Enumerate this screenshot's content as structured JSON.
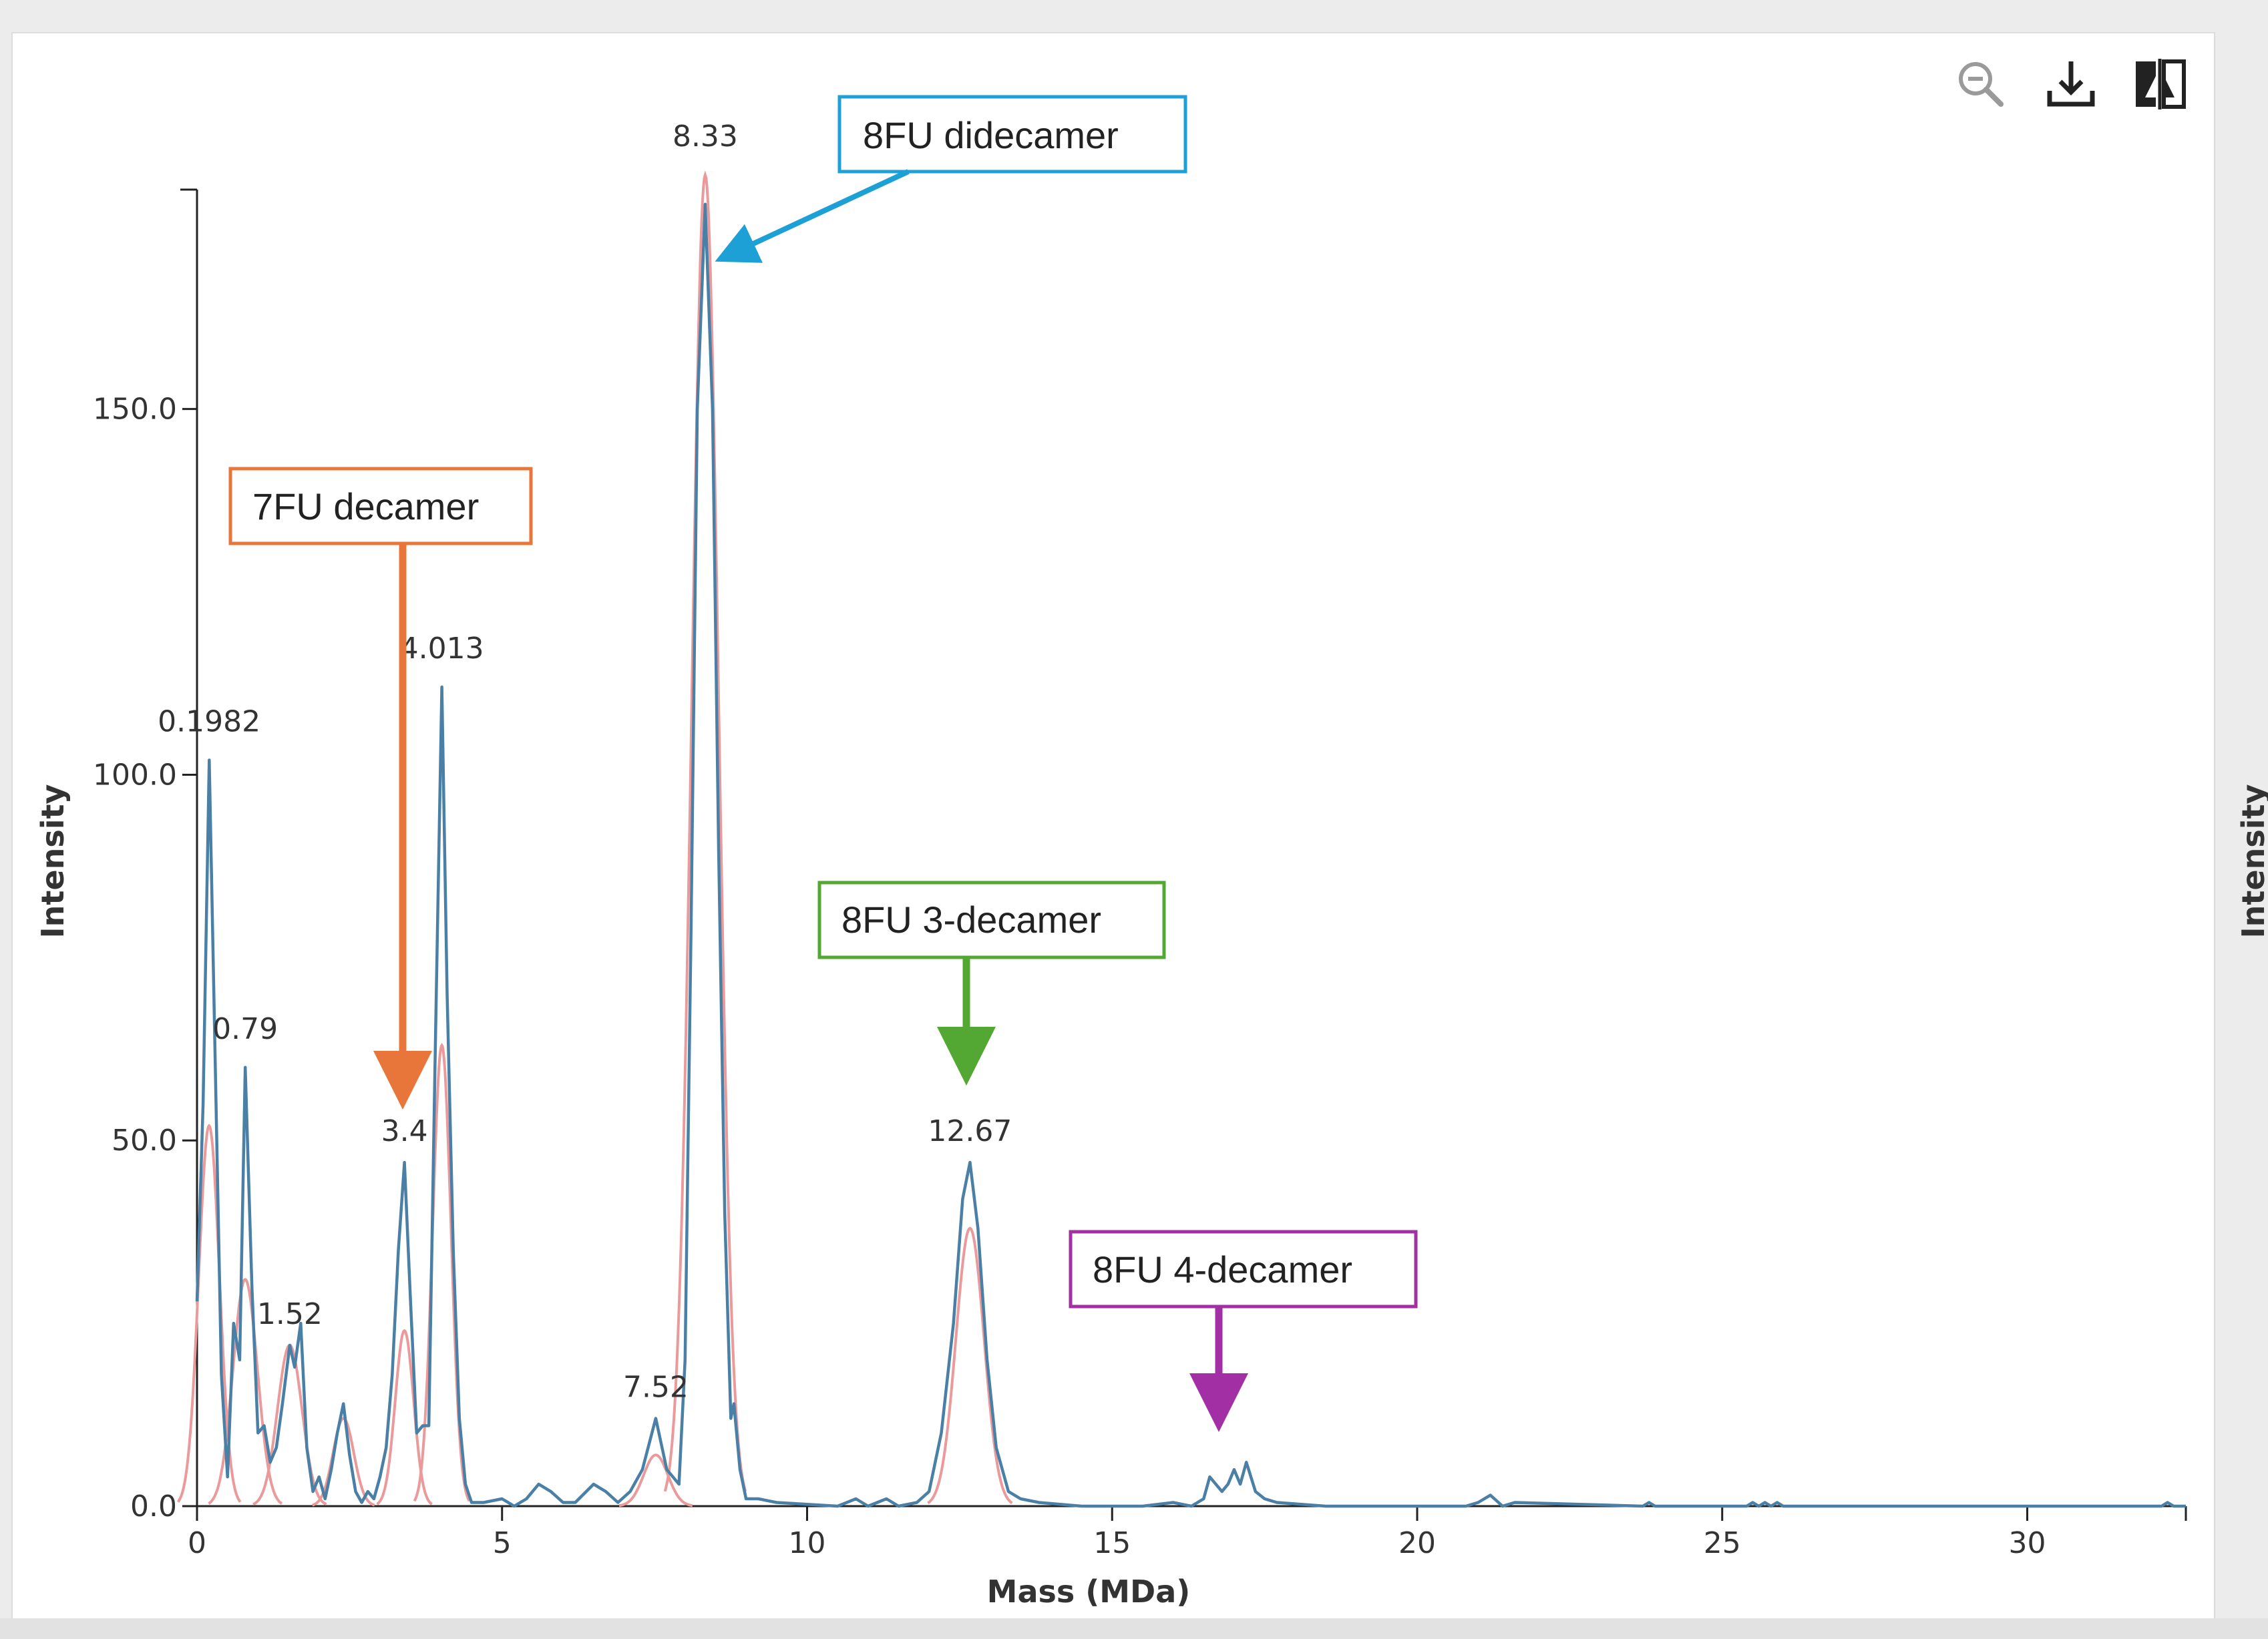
{
  "toolbar": {
    "icons": [
      "zoom-out-icon",
      "download-icon",
      "compare-icon"
    ]
  },
  "right_panel_axis_label": "Intensity",
  "chart_data": {
    "type": "line",
    "xlabel": "Mass (MDa)",
    "ylabel": "Intensity",
    "xlim": [
      0,
      32.6
    ],
    "ylim": [
      0,
      180
    ],
    "xticks": [
      0,
      5,
      10,
      15,
      20,
      25,
      30
    ],
    "yticks": [
      0.0,
      50.0,
      100.0,
      150.0
    ],
    "ytick_labels": [
      "0.0",
      "50.0",
      "100.0",
      "150.0"
    ],
    "grid": false,
    "series": [
      {
        "color": "#4a7fa6",
        "points": [
          [
            0,
            28
          ],
          [
            0.1,
            55
          ],
          [
            0.2,
            102
          ],
          [
            0.3,
            60
          ],
          [
            0.4,
            18
          ],
          [
            0.5,
            4
          ],
          [
            0.6,
            25
          ],
          [
            0.7,
            20
          ],
          [
            0.79,
            60
          ],
          [
            0.9,
            30
          ],
          [
            1.0,
            10
          ],
          [
            1.1,
            11
          ],
          [
            1.2,
            6
          ],
          [
            1.3,
            8
          ],
          [
            1.4,
            14
          ],
          [
            1.52,
            22
          ],
          [
            1.6,
            19
          ],
          [
            1.7,
            25
          ],
          [
            1.8,
            8
          ],
          [
            1.9,
            2
          ],
          [
            2.0,
            4
          ],
          [
            2.1,
            1
          ],
          [
            2.2,
            5
          ],
          [
            2.3,
            10
          ],
          [
            2.4,
            14
          ],
          [
            2.5,
            7
          ],
          [
            2.6,
            2
          ],
          [
            2.7,
            0.5
          ],
          [
            2.8,
            2
          ],
          [
            2.9,
            1
          ],
          [
            3.0,
            4
          ],
          [
            3.1,
            8
          ],
          [
            3.2,
            18
          ],
          [
            3.3,
            35
          ],
          [
            3.4,
            47
          ],
          [
            3.5,
            28
          ],
          [
            3.6,
            10
          ],
          [
            3.7,
            11
          ],
          [
            3.8,
            11
          ],
          [
            3.9,
            60
          ],
          [
            4.013,
            112
          ],
          [
            4.1,
            70
          ],
          [
            4.2,
            35
          ],
          [
            4.3,
            12
          ],
          [
            4.4,
            3
          ],
          [
            4.5,
            0.5
          ],
          [
            4.7,
            0.5
          ],
          [
            5.0,
            1
          ],
          [
            5.2,
            0
          ],
          [
            5.4,
            1
          ],
          [
            5.6,
            3
          ],
          [
            5.8,
            2
          ],
          [
            6.0,
            0.5
          ],
          [
            6.2,
            0.5
          ],
          [
            6.5,
            3
          ],
          [
            6.7,
            2
          ],
          [
            6.9,
            0.5
          ],
          [
            7.1,
            2
          ],
          [
            7.3,
            5
          ],
          [
            7.52,
            12
          ],
          [
            7.7,
            5
          ],
          [
            7.9,
            3
          ],
          [
            8.0,
            20
          ],
          [
            8.1,
            80
          ],
          [
            8.2,
            150
          ],
          [
            8.33,
            178
          ],
          [
            8.45,
            150
          ],
          [
            8.55,
            90
          ],
          [
            8.65,
            40
          ],
          [
            8.75,
            12
          ],
          [
            8.8,
            14
          ],
          [
            8.9,
            5
          ],
          [
            9.0,
            1
          ],
          [
            9.2,
            1
          ],
          [
            9.5,
            0.5
          ],
          [
            10.5,
            0
          ],
          [
            10.8,
            1
          ],
          [
            11.0,
            0
          ],
          [
            11.3,
            1
          ],
          [
            11.5,
            0
          ],
          [
            11.8,
            0.5
          ],
          [
            12.0,
            2
          ],
          [
            12.2,
            10
          ],
          [
            12.4,
            25
          ],
          [
            12.55,
            42
          ],
          [
            12.67,
            47
          ],
          [
            12.8,
            38
          ],
          [
            12.95,
            20
          ],
          [
            13.1,
            8
          ],
          [
            13.3,
            2
          ],
          [
            13.5,
            1
          ],
          [
            13.8,
            0.5
          ],
          [
            14.5,
            0
          ],
          [
            15.5,
            0
          ],
          [
            16.0,
            0.5
          ],
          [
            16.3,
            0
          ],
          [
            16.5,
            1
          ],
          [
            16.6,
            4
          ],
          [
            16.8,
            2
          ],
          [
            16.9,
            3
          ],
          [
            17.0,
            5
          ],
          [
            17.1,
            3
          ],
          [
            17.2,
            6
          ],
          [
            17.35,
            2
          ],
          [
            17.5,
            1
          ],
          [
            17.7,
            0.5
          ],
          [
            18.5,
            0
          ],
          [
            20.8,
            0
          ],
          [
            21.0,
            0.5
          ],
          [
            21.2,
            1.5
          ],
          [
            21.4,
            0
          ],
          [
            21.6,
            0.5
          ],
          [
            23.7,
            0
          ],
          [
            23.8,
            0.5
          ],
          [
            23.9,
            0
          ],
          [
            25.4,
            0
          ],
          [
            25.5,
            0.5
          ],
          [
            25.6,
            0
          ],
          [
            25.7,
            0.5
          ],
          [
            25.8,
            0
          ],
          [
            25.9,
            0.5
          ],
          [
            26.0,
            0
          ],
          [
            32.2,
            0
          ],
          [
            32.3,
            0.5
          ],
          [
            32.4,
            0
          ],
          [
            32.6,
            0
          ]
        ]
      },
      {
        "color": "#ea9a9a",
        "gaussians": [
          {
            "center": 0.1982,
            "height": 52,
            "sigma": 0.17
          },
          {
            "center": 0.79,
            "height": 31,
            "sigma": 0.2
          },
          {
            "center": 1.52,
            "height": 22,
            "sigma": 0.2
          },
          {
            "center": 2.4,
            "height": 12,
            "sigma": 0.17
          },
          {
            "center": 3.4,
            "height": 24,
            "sigma": 0.15
          },
          {
            "center": 4.013,
            "height": 63,
            "sigma": 0.15
          },
          {
            "center": 7.52,
            "height": 7,
            "sigma": 0.2
          },
          {
            "center": 8.33,
            "height": 182,
            "sigma": 0.22
          },
          {
            "center": 12.67,
            "height": 38,
            "sigma": 0.23
          }
        ]
      }
    ],
    "peak_labels": [
      {
        "text": "0.1982",
        "x": 0.1982,
        "y": 105
      },
      {
        "text": "0.79",
        "x": 0.79,
        "y": 63
      },
      {
        "text": "1.52",
        "x": 1.52,
        "y": 24
      },
      {
        "text": "3.4",
        "x": 3.4,
        "y": 49
      },
      {
        "text": "4.013",
        "x": 4.013,
        "y": 115
      },
      {
        "text": "7.52",
        "x": 7.52,
        "y": 14
      },
      {
        "text": "8.33",
        "x": 8.33,
        "y": 185
      },
      {
        "text": "12.67",
        "x": 12.67,
        "y": 49
      }
    ],
    "annotations": [
      {
        "text": "8FU didecamer",
        "color": "#1ca0d6"
      },
      {
        "text": "7FU decamer",
        "color": "#e8763a"
      },
      {
        "text": "8FU 3-decamer",
        "color": "#52a832"
      },
      {
        "text": "8FU 4-decamer",
        "color": "#a22fa3"
      }
    ]
  }
}
